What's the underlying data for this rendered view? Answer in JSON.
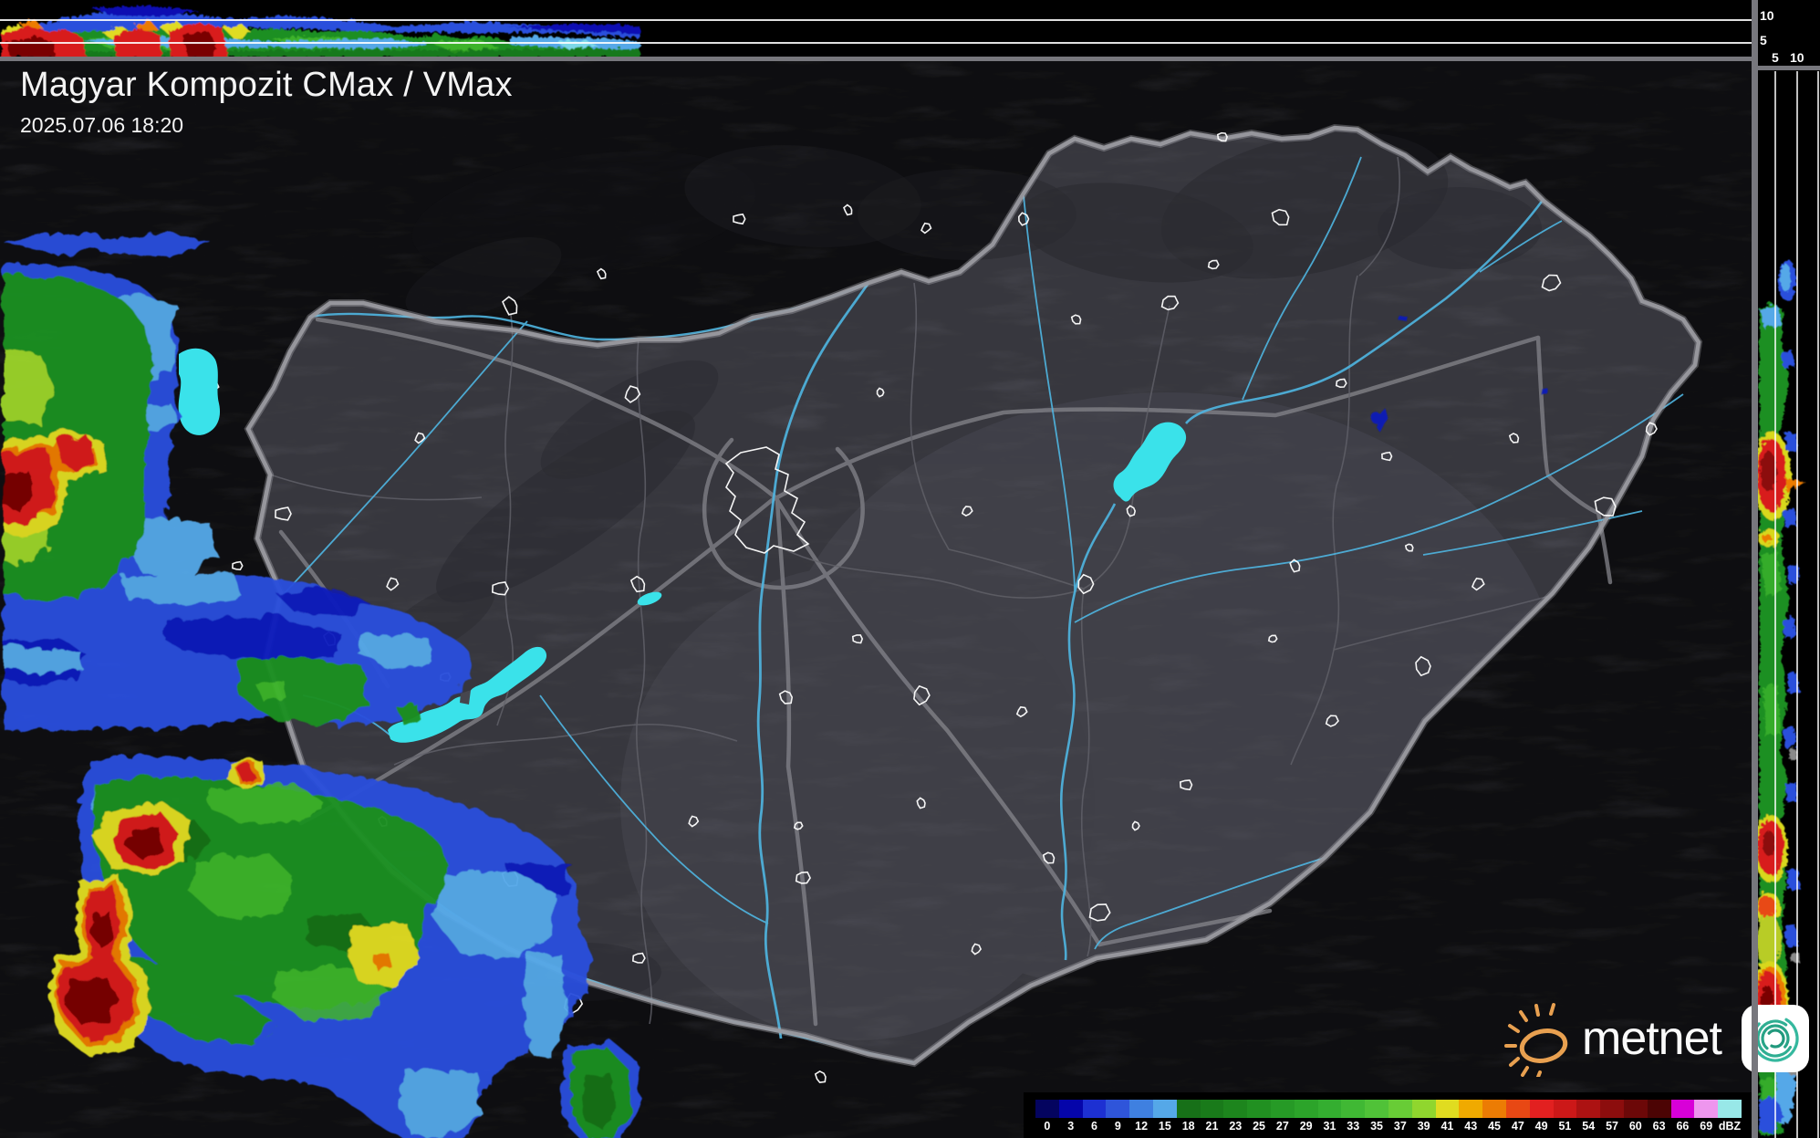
{
  "header": {
    "title": "Magyar Kompozit CMax / VMax",
    "timestamp": "2025.07.06 18:20"
  },
  "top_strip": {
    "axis_labels": [
      "10",
      "5"
    ]
  },
  "right_strip": {
    "axis_labels": [
      "5",
      "10"
    ]
  },
  "legend": {
    "unit": "dBZ",
    "labels": [
      "0",
      "3",
      "6",
      "9",
      "12",
      "15",
      "18",
      "21",
      "23",
      "25",
      "27",
      "29",
      "31",
      "33",
      "35",
      "37",
      "39",
      "41",
      "43",
      "45",
      "47",
      "49",
      "51",
      "54",
      "57",
      "60",
      "63",
      "66",
      "69",
      "dBZ"
    ],
    "colors": [
      "#04045f",
      "#0505aa",
      "#1d30d2",
      "#2f55da",
      "#3f80e0",
      "#55a8e8",
      "#177018",
      "#197a1a",
      "#1d851d",
      "#219021",
      "#269a26",
      "#2ca42a",
      "#34ae30",
      "#40b834",
      "#50c238",
      "#68cc36",
      "#90d62e",
      "#e0dc20",
      "#f0aa00",
      "#ec7c04",
      "#e84814",
      "#e22020",
      "#cc1818",
      "#ac1212",
      "#8c0d0d",
      "#6c0808",
      "#4c0404",
      "#d800d8",
      "#ee96ee",
      "#98e8e8"
    ]
  },
  "branding": {
    "logo_text": "metnet"
  },
  "colors": {
    "water": "#3ae2ea",
    "country_border": "#9a9aa0",
    "river": "#4fb6e2",
    "road": "#85858b",
    "outside_terrain": "#2c2c31",
    "inside_terrain": "#46464e",
    "grid_line": "#ffffff"
  }
}
